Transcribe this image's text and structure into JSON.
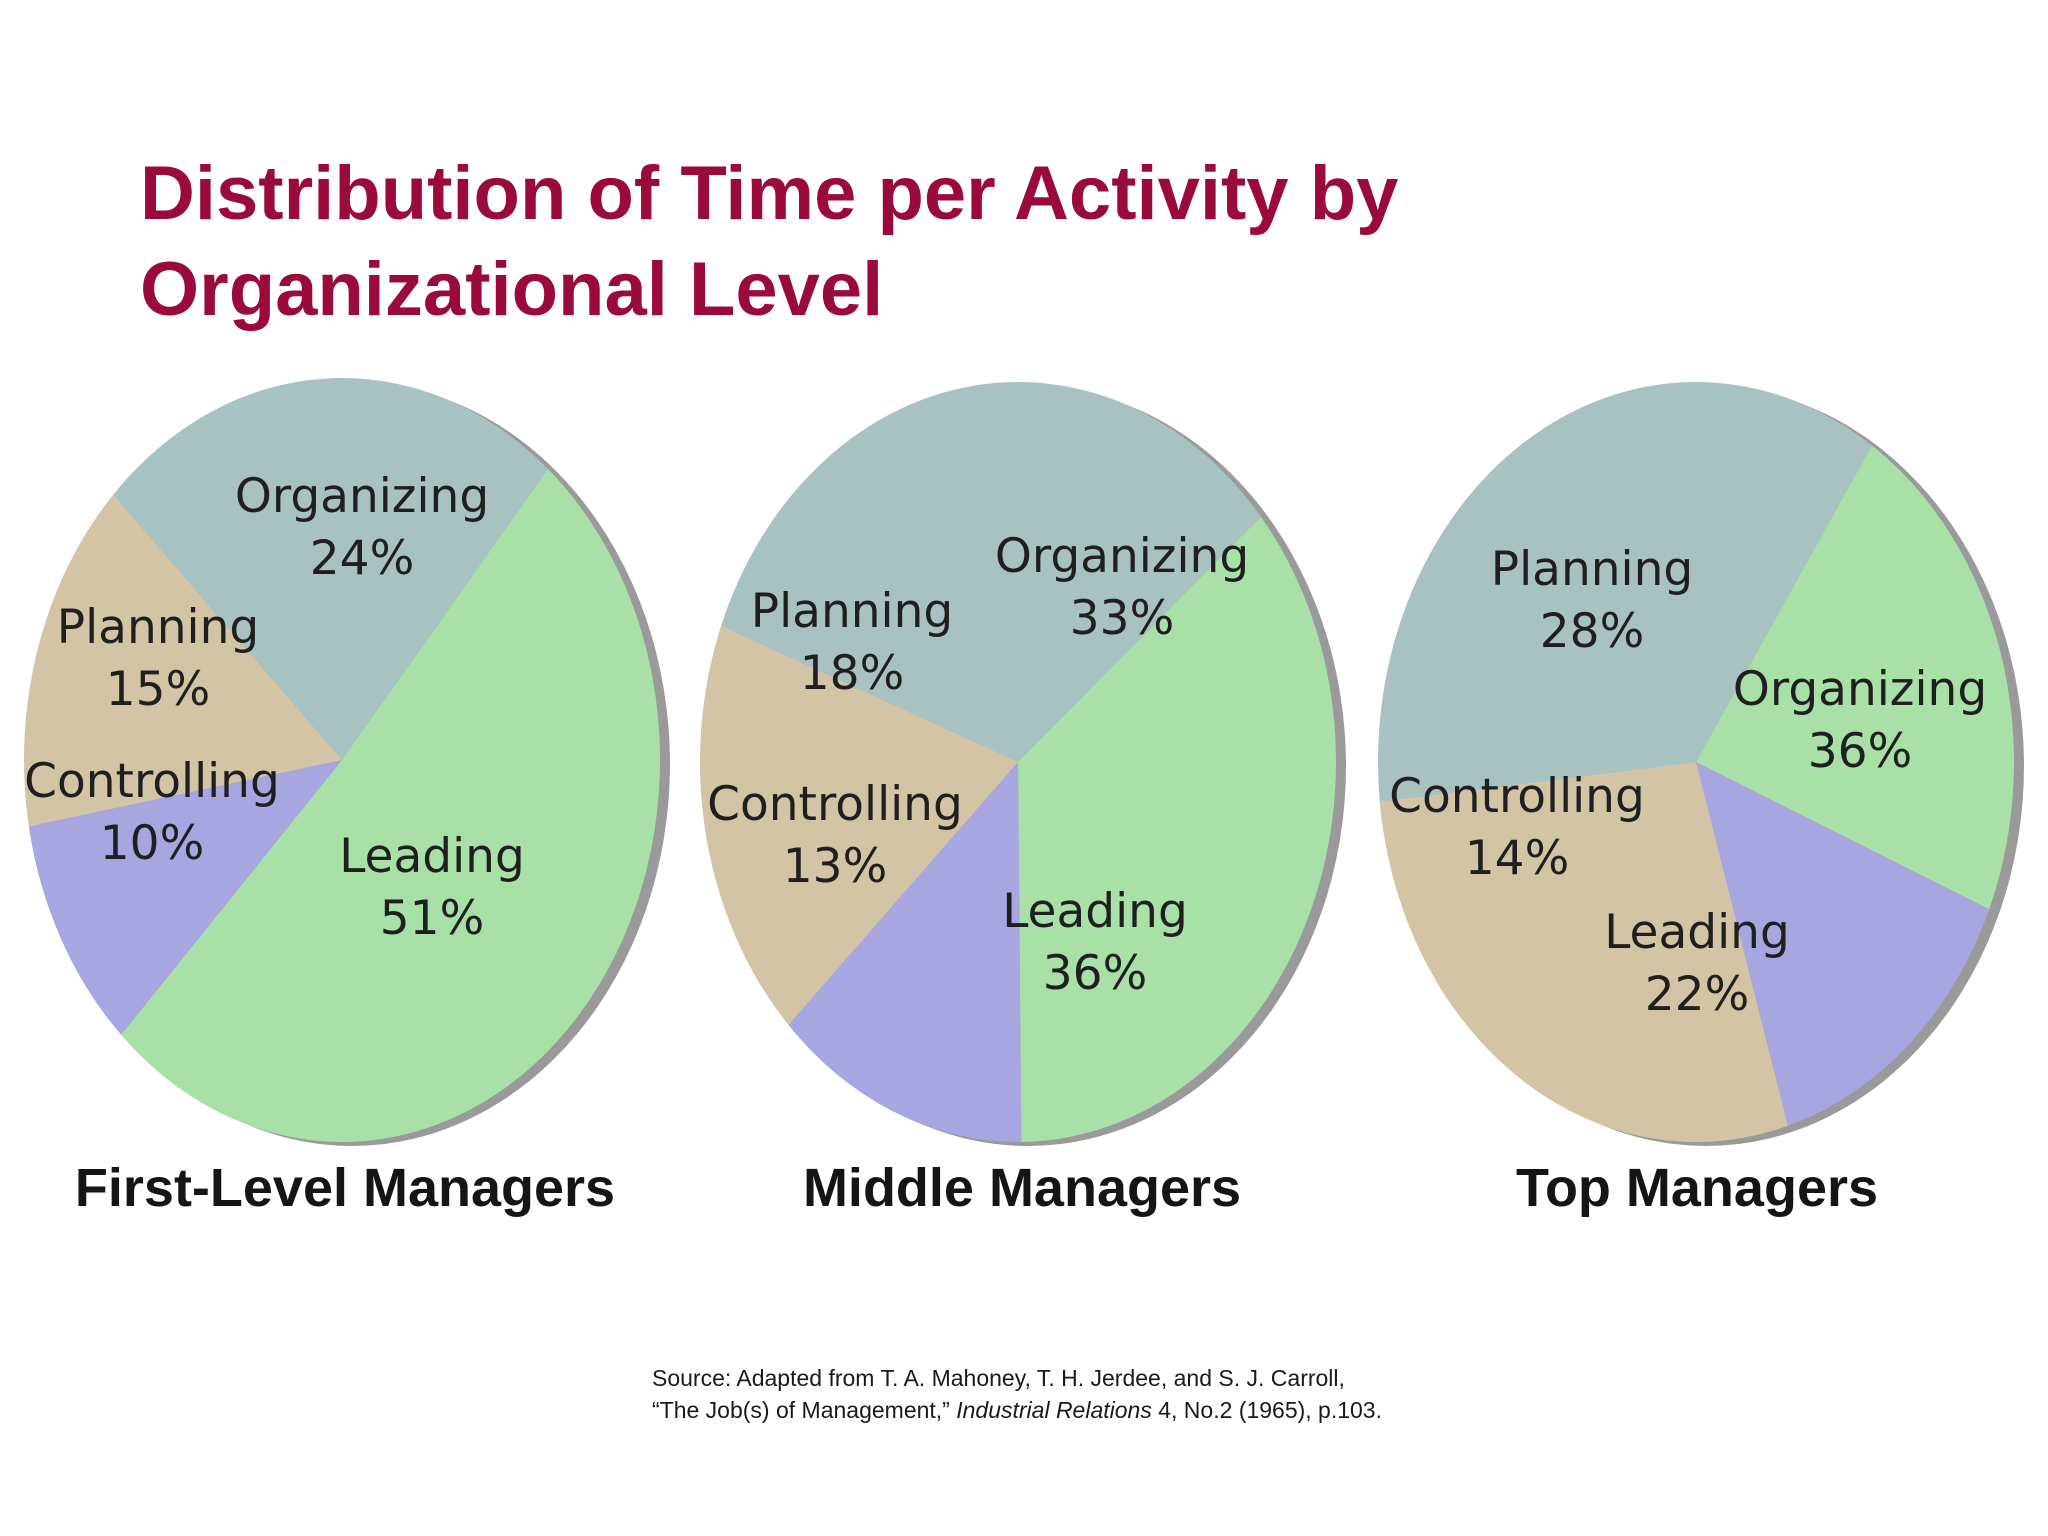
{
  "title_line1": "Distribution of Time per Activity by",
  "title_line2": "Organizational Level",
  "colors": {
    "Planning": "#d4c4a6",
    "Organizing": "#a8c2c1",
    "Leading": "#a8e0a8",
    "Controlling": "#a8a6e1",
    "shadow": "#9a9a9a",
    "title": "#9b0a3c"
  },
  "chart_data": [
    {
      "type": "pie",
      "title": "First-Level Managers",
      "slices": [
        {
          "label": "Organizing",
          "value": 24,
          "text": "24%"
        },
        {
          "label": "Leading",
          "value": 51,
          "text": "51%"
        },
        {
          "label": "Controlling",
          "value": 10,
          "text": "10%"
        },
        {
          "label": "Planning",
          "value": 15,
          "text": "15%"
        }
      ]
    },
    {
      "type": "pie",
      "title": "Middle Managers",
      "slices": [
        {
          "label": "Organizing",
          "value": 33,
          "text": "33%"
        },
        {
          "label": "Leading",
          "value": 36,
          "text": "36%"
        },
        {
          "label": "Controlling",
          "value": 13,
          "text": "13%"
        },
        {
          "label": "Planning",
          "value": 18,
          "text": "18%"
        }
      ]
    },
    {
      "type": "pie",
      "title": "Top Managers",
      "slices": [
        {
          "label": "Organizing",
          "value": 36,
          "text": "36%"
        },
        {
          "label": "Leading",
          "value": 22,
          "text": "22%"
        },
        {
          "label": "Controlling",
          "value": 14,
          "text": "14%"
        },
        {
          "label": "Planning",
          "value": 28,
          "text": "28%"
        }
      ]
    }
  ],
  "source": {
    "line1": "Source: Adapted from T. A. Mahoney, T. H. Jerdee, and S. J. Carroll,",
    "line2_a": "“The Job(s) of Management,” ",
    "line2_italic": "Industrial Relations",
    "line2_b": " 4, No.2 (1965), p.103."
  }
}
